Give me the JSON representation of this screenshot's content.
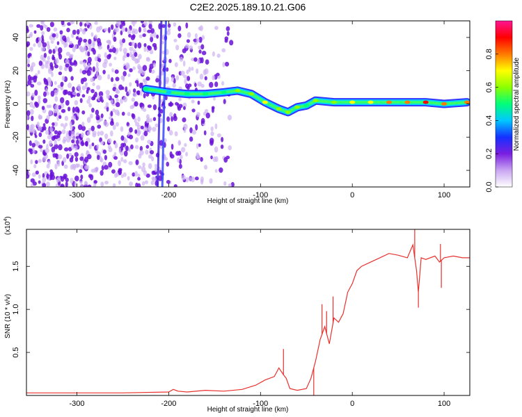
{
  "title": "C2E2.2025.189.10.21.G06",
  "chart_data": [
    {
      "type": "heatmap",
      "xlabel": "Height of straight line (km)",
      "ylabel": "Frequency (Hz)",
      "xlim": [
        -355,
        128
      ],
      "ylim": [
        -50,
        50
      ],
      "x_ticks": [
        -300,
        -200,
        -100,
        0,
        100
      ],
      "y_ticks": [
        -40,
        -20,
        0,
        20,
        40
      ],
      "colorbar": {
        "label": "Normalized spectral amplitude",
        "range": [
          0,
          1
        ],
        "ticks": [
          0.0,
          0.2,
          0.4,
          0.6,
          0.8
        ],
        "tick_labels": [
          "0.0",
          "0.2",
          "0.4",
          "0.6",
          "0.8"
        ],
        "colors": [
          "#ffffff",
          "#c9a6f2",
          "#7a1ee0",
          "#1530ff",
          "#00c8ff",
          "#00ff7a",
          "#8cff00",
          "#ffff00",
          "#ff7a00",
          "#ff0000",
          "#ff1493"
        ]
      },
      "ridge": [
        {
          "x": -225,
          "y": 9,
          "amp": 0.45
        },
        {
          "x": -200,
          "y": 7,
          "amp": 0.4
        },
        {
          "x": -180,
          "y": 6,
          "amp": 0.45
        },
        {
          "x": -160,
          "y": 6,
          "amp": 0.45
        },
        {
          "x": -140,
          "y": 7,
          "amp": 0.5
        },
        {
          "x": -125,
          "y": 8,
          "amp": 0.55
        },
        {
          "x": -110,
          "y": 6,
          "amp": 0.6
        },
        {
          "x": -95,
          "y": 1,
          "amp": 0.65
        },
        {
          "x": -80,
          "y": -3,
          "amp": 0.6
        },
        {
          "x": -70,
          "y": -5,
          "amp": 0.6
        },
        {
          "x": -60,
          "y": -2,
          "amp": 0.55
        },
        {
          "x": -50,
          "y": -1,
          "amp": 0.5
        },
        {
          "x": -40,
          "y": 2,
          "amp": 0.55
        },
        {
          "x": -20,
          "y": 1,
          "amp": 0.6
        },
        {
          "x": 0,
          "y": 1,
          "amp": 0.65
        },
        {
          "x": 20,
          "y": 1,
          "amp": 0.7
        },
        {
          "x": 40,
          "y": 1,
          "amp": 0.75
        },
        {
          "x": 60,
          "y": 1,
          "amp": 0.8
        },
        {
          "x": 80,
          "y": 1,
          "amp": 0.85
        },
        {
          "x": 100,
          "y": 0,
          "amp": 0.8
        },
        {
          "x": 125,
          "y": 1,
          "amp": 0.75
        }
      ]
    },
    {
      "type": "line",
      "xlabel": "Height of straight line (km)",
      "ylabel": "SNR (10 * v/v)",
      "y_scale_label": "(x10",
      "y_scale_exp": "4",
      "xlim": [
        -355,
        128
      ],
      "ylim": [
        0,
        1.93
      ],
      "x_ticks": [
        -300,
        -200,
        -100,
        0,
        100
      ],
      "y_ticks": [
        0.5,
        1.0,
        1.5
      ],
      "y_tick_labels": [
        "0.5",
        "1.0",
        "1.5"
      ],
      "color": "#e8302c",
      "x": [
        -355,
        -300,
        -250,
        -200,
        -195,
        -190,
        -180,
        -160,
        -140,
        -120,
        -105,
        -95,
        -85,
        -80,
        -75,
        -72,
        -68,
        -60,
        -50,
        -45,
        -40,
        -35,
        -30,
        -25,
        -20,
        -15,
        -10,
        -5,
        0,
        5,
        10,
        20,
        30,
        40,
        50,
        60,
        66,
        70,
        72,
        75,
        80,
        90,
        95,
        100,
        110,
        120,
        128
      ],
      "y": [
        0.03,
        0.03,
        0.03,
        0.04,
        0.07,
        0.05,
        0.04,
        0.06,
        0.05,
        0.07,
        0.12,
        0.18,
        0.22,
        0.32,
        0.24,
        0.2,
        0.08,
        0.06,
        0.08,
        0.2,
        0.4,
        0.65,
        0.8,
        0.6,
        0.9,
        0.85,
        0.95,
        1.2,
        1.3,
        1.45,
        1.5,
        1.55,
        1.6,
        1.65,
        1.63,
        1.6,
        1.75,
        1.45,
        1.2,
        1.6,
        1.58,
        1.62,
        1.55,
        1.6,
        1.62,
        1.6,
        1.6
      ],
      "spikes": [
        {
          "x": -75,
          "y": 0.54
        },
        {
          "x": -42,
          "y": 0.0
        },
        {
          "x": -33,
          "y": 1.06
        },
        {
          "x": -28,
          "y": 0.98
        },
        {
          "x": -21,
          "y": 1.15
        },
        {
          "x": -12,
          "y": 0.92
        },
        {
          "x": 68,
          "y": 1.93
        },
        {
          "x": 72,
          "y": 1.02
        },
        {
          "x": 96,
          "y": 1.76
        },
        {
          "x": 97,
          "y": 1.25
        }
      ]
    }
  ]
}
